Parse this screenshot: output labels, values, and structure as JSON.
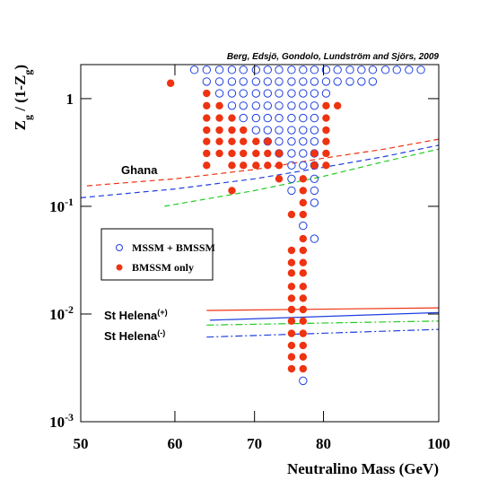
{
  "chart_data": {
    "type": "scatter",
    "credit": "Berg, Edsjö, Gondolo, Lundström and Sjörs, 2009",
    "xlabel": "Neutralino Mass (GeV)",
    "ylabel": "Z_{g} / (1-Z_{g})",
    "xscale": "log",
    "yscale": "log",
    "xlim": [
      50,
      100
    ],
    "ylim": [
      0.001,
      2.07
    ],
    "xticks": [
      50,
      60,
      70,
      80,
      100
    ],
    "yticks": [
      {
        "value": 0.001,
        "label": "10^{-3}"
      },
      {
        "value": 0.01,
        "label": "10^{-2}"
      },
      {
        "value": 0.1,
        "label": "10^{-1}"
      },
      1
    ],
    "annotations": [
      "Ghana",
      "St Helena^{(+)}",
      "St Helena^{(-)}"
    ],
    "series": [
      {
        "name": "MSSM + BMSSM",
        "color": "#1f3fe0",
        "marker": "open",
        "x": [
          62.3,
          63.8,
          65.4,
          67.0,
          68.5,
          70.2,
          71.8,
          73.4,
          75.2,
          76.9,
          78.6,
          80.4,
          82.2,
          84.2,
          86.1,
          88.0,
          90.2,
          92.2,
          94.4,
          96.6,
          63.8,
          65.4,
          67.0,
          68.5,
          70.2,
          71.8,
          73.4,
          75.2,
          76.9,
          78.6,
          80.4,
          82.2,
          84.2,
          86.1,
          88.0,
          65.4,
          67.0,
          68.5,
          70.2,
          71.8,
          73.4,
          75.2,
          76.9,
          78.6,
          80.4,
          67.0,
          68.5,
          70.2,
          71.8,
          73.4,
          75.2,
          76.9,
          78.6,
          68.5,
          70.2,
          71.8,
          73.4,
          75.2,
          76.9,
          78.6,
          70.2,
          71.8,
          73.4,
          75.2,
          76.9,
          78.6,
          71.8,
          73.4,
          75.2,
          76.9,
          78.6,
          73.4,
          75.2,
          76.9,
          78.6,
          75.2,
          76.9,
          78.6,
          75.2,
          78.6,
          75.2,
          78.6,
          78.6,
          76.9,
          78.6,
          76.9
        ],
        "values": [
          1.85,
          1.85,
          1.85,
          1.85,
          1.85,
          1.85,
          1.85,
          1.85,
          1.85,
          1.85,
          1.85,
          1.85,
          1.85,
          1.85,
          1.85,
          1.85,
          1.85,
          1.85,
          1.85,
          1.85,
          1.44,
          1.44,
          1.44,
          1.44,
          1.44,
          1.44,
          1.44,
          1.44,
          1.44,
          1.44,
          1.44,
          1.44,
          1.44,
          1.44,
          1.44,
          1.12,
          1.12,
          1.12,
          1.12,
          1.12,
          1.12,
          1.12,
          1.12,
          1.12,
          1.12,
          0.86,
          0.86,
          0.86,
          0.86,
          0.86,
          0.86,
          0.86,
          0.86,
          0.66,
          0.66,
          0.66,
          0.66,
          0.66,
          0.66,
          0.66,
          0.51,
          0.51,
          0.51,
          0.51,
          0.51,
          0.51,
          0.4,
          0.4,
          0.4,
          0.4,
          0.4,
          0.31,
          0.31,
          0.31,
          0.31,
          0.24,
          0.24,
          0.24,
          0.18,
          0.18,
          0.14,
          0.14,
          0.108,
          0.066,
          0.05,
          0.0024
        ]
      },
      {
        "name": "BMSSM only",
        "color": "#ee3311",
        "marker": "filled",
        "x": [
          59.5,
          67.0,
          73.4,
          82.2,
          63.8,
          63.8,
          63.8,
          63.8,
          63.8,
          63.8,
          63.8,
          65.4,
          65.4,
          65.4,
          65.4,
          65.4,
          67.0,
          67.0,
          67.0,
          67.0,
          67.0,
          68.5,
          68.5,
          68.5,
          68.5,
          70.2,
          70.2,
          70.2,
          71.8,
          71.8,
          71.8,
          73.4,
          73.4,
          75.2,
          75.2,
          75.2,
          75.2,
          75.2,
          75.2,
          75.2,
          75.2,
          75.2,
          75.2,
          75.2,
          75.2,
          76.9,
          76.9,
          76.9,
          76.9,
          76.9,
          76.9,
          76.9,
          76.9,
          76.9,
          76.9,
          76.9,
          76.9,
          76.9,
          76.9,
          76.9,
          76.9,
          78.6,
          78.6,
          80.4,
          80.4,
          80.4,
          80.4,
          80.4,
          80.4
        ],
        "values": [
          1.39,
          0.14,
          0.18,
          0.86,
          1.12,
          0.86,
          0.66,
          0.51,
          0.4,
          0.31,
          0.24,
          0.86,
          0.66,
          0.51,
          0.4,
          0.31,
          0.66,
          0.51,
          0.4,
          0.31,
          0.24,
          0.51,
          0.4,
          0.31,
          0.24,
          0.4,
          0.31,
          0.24,
          0.4,
          0.31,
          0.24,
          0.31,
          0.24,
          0.084,
          0.039,
          0.03,
          0.024,
          0.018,
          0.014,
          0.011,
          0.0086,
          0.0066,
          0.0051,
          0.004,
          0.0031,
          0.18,
          0.14,
          0.108,
          0.084,
          0.05,
          0.039,
          0.03,
          0.024,
          0.018,
          0.014,
          0.011,
          0.0086,
          0.0066,
          0.0051,
          0.004,
          0.0031,
          0.31,
          0.24,
          0.86,
          0.66,
          0.51,
          0.4,
          0.31,
          0.24
        ]
      }
    ],
    "lines": [
      {
        "color": "#ee3311",
        "dash": "dashed",
        "x": [
          50.6,
          60,
          70,
          80,
          90,
          100
        ],
        "values": [
          0.155,
          0.18,
          0.22,
          0.28,
          0.34,
          0.42
        ]
      },
      {
        "color": "#1f3fe0",
        "dash": "dashed",
        "x": [
          50,
          60,
          70,
          80,
          90,
          100
        ],
        "values": [
          0.12,
          0.145,
          0.18,
          0.23,
          0.29,
          0.37
        ]
      },
      {
        "color": "#22cc22",
        "dash": "dashed",
        "x": [
          58.8,
          70,
          80,
          90,
          100
        ],
        "values": [
          0.1,
          0.14,
          0.19,
          0.26,
          0.34
        ]
      },
      {
        "color": "#ee3311",
        "dash": "solid",
        "x": [
          63.8,
          100
        ],
        "values": [
          0.0108,
          0.0114
        ]
      },
      {
        "color": "#1f3fe0",
        "dash": "solid",
        "x": [
          64.2,
          100
        ],
        "values": [
          0.00875,
          0.0103
        ]
      },
      {
        "color": "#22cc22",
        "dash": "dashdot",
        "x": [
          63.8,
          100
        ],
        "values": [
          0.0079,
          0.0086
        ]
      },
      {
        "color": "#1f3fe0",
        "dash": "dashdot",
        "x": [
          63.8,
          100
        ],
        "values": [
          0.0061,
          0.0072
        ]
      }
    ]
  }
}
